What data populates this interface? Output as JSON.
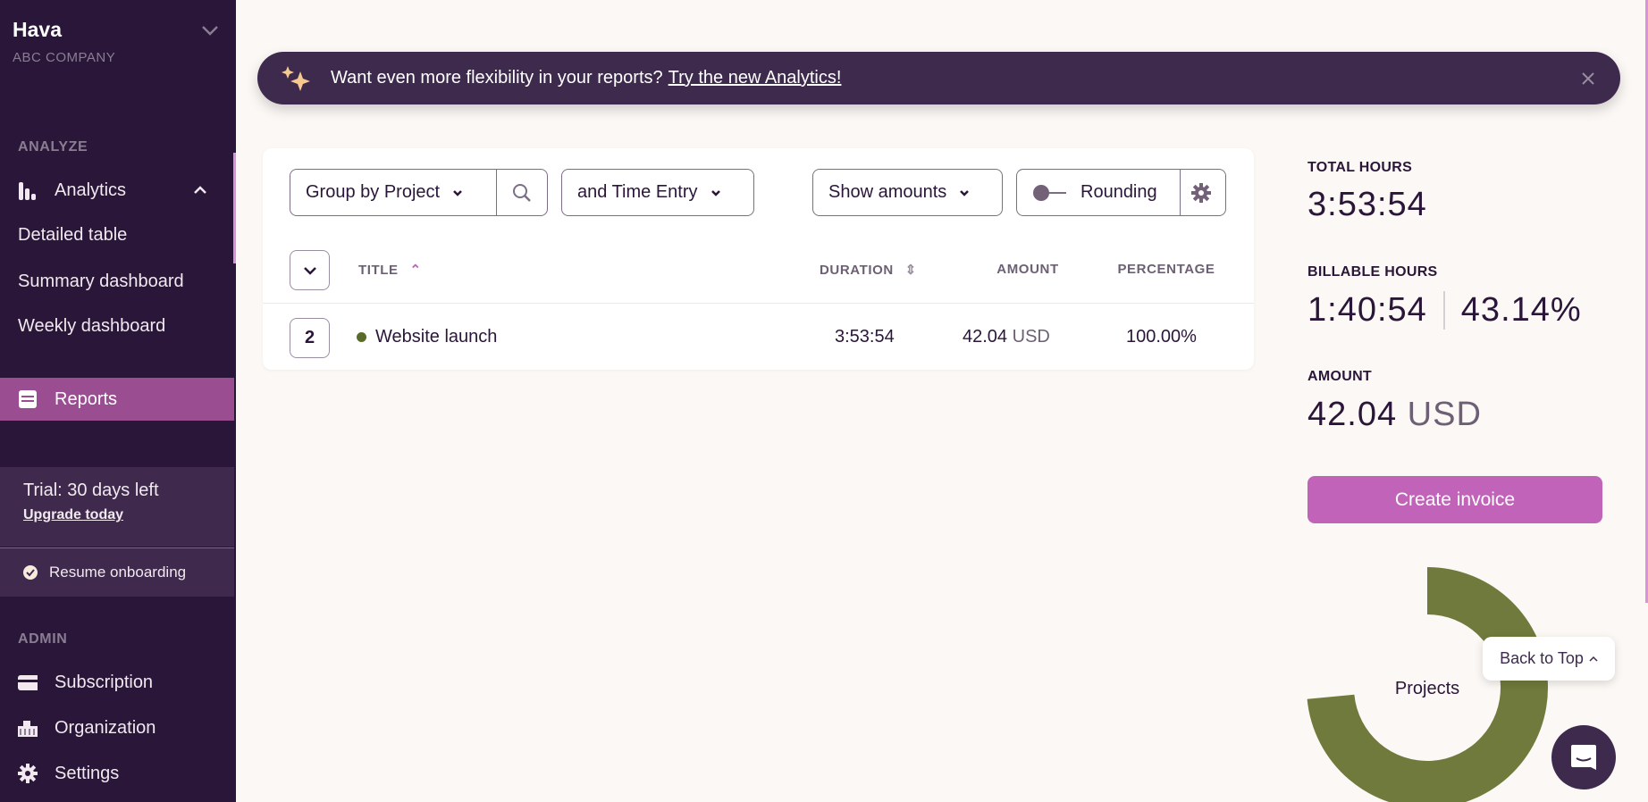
{
  "sidebar": {
    "workspace": "Hava",
    "company": "ABC COMPANY",
    "analyze_label": "ANALYZE",
    "analytics": "Analytics",
    "analytics_items": [
      "Detailed table",
      "Summary dashboard",
      "Weekly dashboard"
    ],
    "reports": "Reports",
    "trial": "Trial: 30 days left",
    "upgrade": "Upgrade today",
    "resume": "Resume onboarding",
    "admin_label": "ADMIN",
    "admin_items": [
      "Subscription",
      "Organization",
      "Settings"
    ]
  },
  "banner": {
    "text": "Want even more flexibility in your reports?",
    "link": "Try the new Analytics!"
  },
  "toolbar": {
    "group_by": "Group by Project",
    "sub_group": "and Time Entry",
    "show": "Show amounts",
    "rounding": "Rounding"
  },
  "table": {
    "headers": {
      "title": "TITLE",
      "duration": "DURATION",
      "amount": "AMOUNT",
      "percentage": "PERCENTAGE"
    },
    "rows": [
      {
        "count": "2",
        "title": "Website launch",
        "color": "#5a6a2a",
        "duration": "3:53:54",
        "amount": "42.04",
        "currency": "USD",
        "percentage": "100.00%"
      }
    ]
  },
  "summary": {
    "total_label": "TOTAL HOURS",
    "total": "3:53:54",
    "billable_label": "BILLABLE HOURS",
    "billable": "1:40:54",
    "billable_pct": "43.14%",
    "amount_label": "AMOUNT",
    "amount": "42.04",
    "currency": "USD",
    "invoice": "Create invoice"
  },
  "chart_data": {
    "type": "pie",
    "title": "Projects",
    "categories": [
      "Website launch"
    ],
    "values": [
      100
    ],
    "colors": [
      "#707a3c"
    ]
  },
  "back_to_top": "Back to Top",
  "colors": {
    "sidebar": "#2a1638",
    "accent": "#c164b9",
    "active": "#9a4d91",
    "banner": "#3d2a4d"
  }
}
